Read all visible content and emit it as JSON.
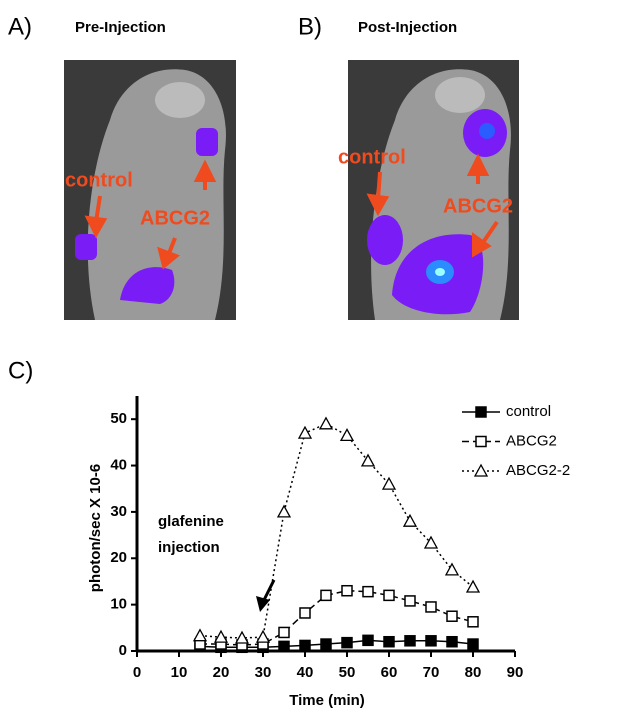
{
  "panels": [
    {
      "letter": "A)",
      "title": "Pre-Injection",
      "labels": [
        "control",
        "ABCG2"
      ]
    },
    {
      "letter": "B)",
      "title": "Post-Injection",
      "labels": [
        "control",
        "ABCG2"
      ]
    }
  ],
  "chart_label": "C)",
  "chart_data": {
    "type": "line",
    "x_label": "Time (min)",
    "y_label": "photon/sec X 10-6",
    "annotation": [
      "glafenine",
      "injection"
    ],
    "x": [
      15,
      20,
      25,
      30,
      35,
      40,
      45,
      50,
      55,
      60,
      65,
      70,
      75,
      80
    ],
    "series": [
      {
        "name": "control",
        "color": "#000000",
        "marker": "square-filled",
        "dash": "solid",
        "values": [
          1,
          0.8,
          0.8,
          0.8,
          1,
          1.2,
          1.5,
          1.8,
          2.3,
          2,
          2.2,
          2.2,
          2,
          1.5
        ]
      },
      {
        "name": "ABCG2",
        "color": "#000000",
        "marker": "square-open",
        "dash": "dashed",
        "values": [
          1.5,
          1.5,
          1.3,
          1.5,
          4,
          8.2,
          12,
          13,
          12.8,
          12,
          10.8,
          9.5,
          7.5,
          6.3
        ]
      },
      {
        "name": "ABCG2-2",
        "color": "#000000",
        "marker": "triangle-open",
        "dash": "dotted",
        "values": [
          3.3,
          3,
          2.8,
          3,
          30,
          47,
          49,
          46.5,
          41,
          36,
          28,
          23.3,
          17.5,
          13.8
        ]
      }
    ],
    "xlim": [
      0,
      90
    ],
    "xticks": [
      0,
      10,
      20,
      30,
      40,
      50,
      60,
      70,
      80,
      90
    ],
    "ylim": [
      0,
      55
    ],
    "yticks": [
      0,
      10,
      20,
      30,
      40,
      50
    ],
    "grid": false,
    "legend": "upper right"
  }
}
